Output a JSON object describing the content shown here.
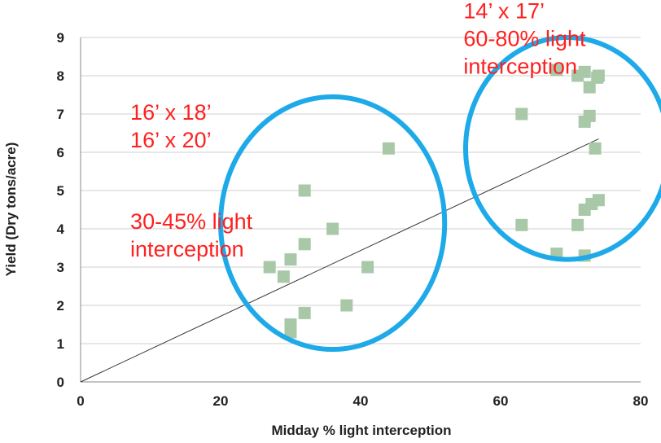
{
  "chart_data": {
    "type": "scatter",
    "xlabel": "Midday % light interception",
    "ylabel": "Yield (Dry tons/acre)",
    "xlim": [
      0,
      80
    ],
    "ylim": [
      0,
      9
    ],
    "x_ticks": [
      0,
      20,
      40,
      60,
      80
    ],
    "y_ticks": [
      0,
      1,
      2,
      3,
      4,
      5,
      6,
      7,
      8,
      9
    ],
    "grid": "horizontal",
    "colors": {
      "points": "#a8c8a8",
      "ellipse": "#1eaae8",
      "annotation": "#ff2020",
      "trendline": "#333333"
    },
    "points": [
      {
        "x": 27,
        "y": 3.0
      },
      {
        "x": 29,
        "y": 2.75
      },
      {
        "x": 30,
        "y": 3.2
      },
      {
        "x": 30,
        "y": 1.5
      },
      {
        "x": 30,
        "y": 1.3
      },
      {
        "x": 32,
        "y": 5.0
      },
      {
        "x": 32,
        "y": 3.6
      },
      {
        "x": 32,
        "y": 1.8
      },
      {
        "x": 36,
        "y": 4.0
      },
      {
        "x": 38,
        "y": 2.0
      },
      {
        "x": 41,
        "y": 3.0
      },
      {
        "x": 44,
        "y": 6.1
      },
      {
        "x": 63,
        "y": 7.0
      },
      {
        "x": 63,
        "y": 4.1
      },
      {
        "x": 68,
        "y": 8.15
      },
      {
        "x": 68,
        "y": 3.35
      },
      {
        "x": 71,
        "y": 8.0
      },
      {
        "x": 71,
        "y": 4.1
      },
      {
        "x": 72,
        "y": 8.1
      },
      {
        "x": 72,
        "y": 6.8
      },
      {
        "x": 72,
        "y": 4.5
      },
      {
        "x": 72,
        "y": 3.3
      },
      {
        "x": 72.7,
        "y": 7.7
      },
      {
        "x": 72.7,
        "y": 6.95
      },
      {
        "x": 73,
        "y": 4.65
      },
      {
        "x": 73.5,
        "y": 6.1
      },
      {
        "x": 73.8,
        "y": 7.95
      },
      {
        "x": 74,
        "y": 8.0
      },
      {
        "x": 74,
        "y": 4.75
      }
    ],
    "trendline": {
      "from": {
        "x": 0,
        "y": 0
      },
      "to": {
        "x": 74,
        "y": 6.35
      }
    },
    "ellipses": [
      {
        "cx": 36,
        "cy": 4.15,
        "rx": 16,
        "ry": 3.3
      },
      {
        "cx": 69.5,
        "cy": 6.1,
        "rx": 14.5,
        "ry": 2.9
      }
    ],
    "annotations": [
      {
        "lines": [
          "14’ x 17’",
          "60-80% light",
          "interception"
        ],
        "x": 54.7,
        "y": 9.5
      },
      {
        "lines": [
          "16’ x 18’",
          "16’ x 20’"
        ],
        "x": 7.1,
        "y": 6.85
      },
      {
        "lines": [
          "30-45% light",
          "interception"
        ],
        "x": 7.1,
        "y": 4.0
      }
    ]
  }
}
